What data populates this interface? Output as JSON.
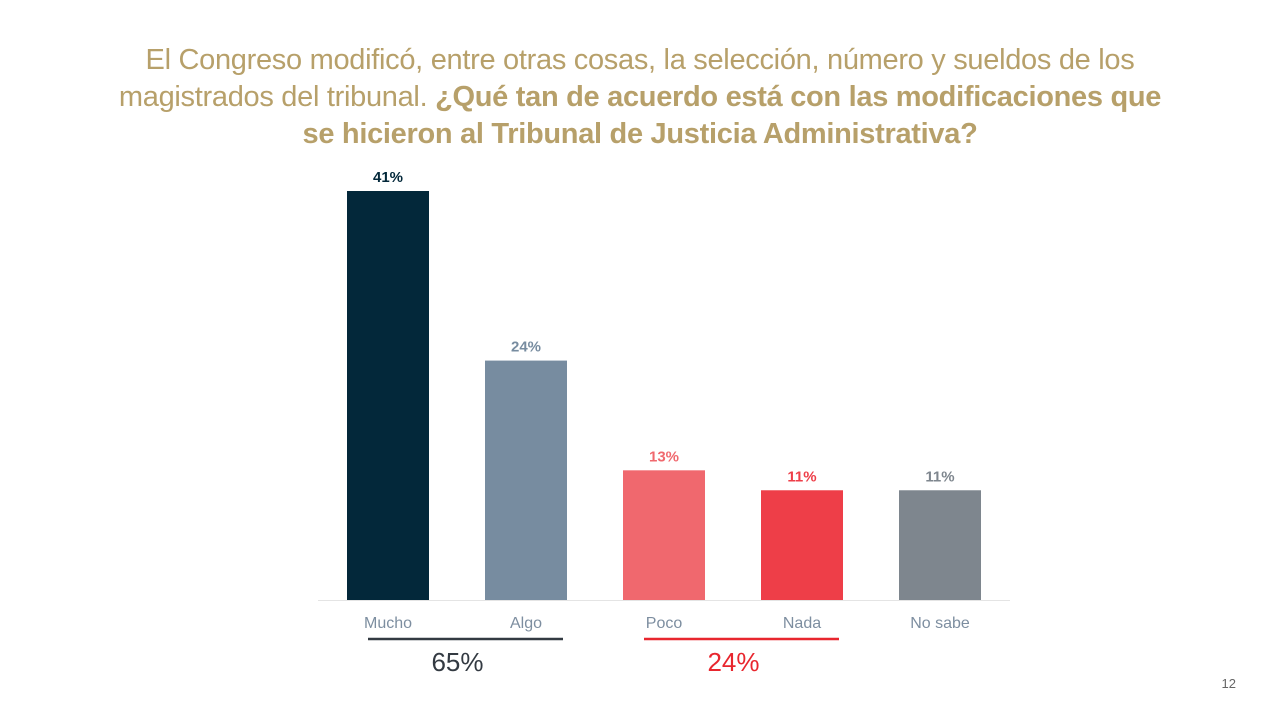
{
  "title": {
    "normal": "El Congreso modificó, entre otras cosas, la selección, número y sueldos de los magistrados del tribunal. ",
    "bold": "¿Qué tan de acuerdo está con las modificaciones que se hicieron al Tribunal de Justicia Administrativa?"
  },
  "chart_data": {
    "type": "bar",
    "categories": [
      "Mucho",
      "Algo",
      "Poco",
      "Nada",
      "No sabe"
    ],
    "values": [
      41,
      24,
      13,
      11,
      11
    ],
    "value_labels": [
      "41%",
      "24%",
      "13%",
      "11%",
      "11%"
    ],
    "colors": [
      "#03283a",
      "#778ca0",
      "#f0686e",
      "#ee3e48",
      "#7e868e"
    ],
    "label_colors": [
      "#03283a",
      "#778ca0",
      "#f0686e",
      "#ee3e48",
      "#7e868e"
    ],
    "ylim": [
      0,
      41
    ],
    "groups": [
      {
        "label": "65%",
        "categories": [
          "Mucho",
          "Algo"
        ],
        "color": "#333a42"
      },
      {
        "label": "24%",
        "categories": [
          "Poco",
          "Nada"
        ],
        "color": "#e8262e"
      }
    ]
  },
  "page_number": "12"
}
